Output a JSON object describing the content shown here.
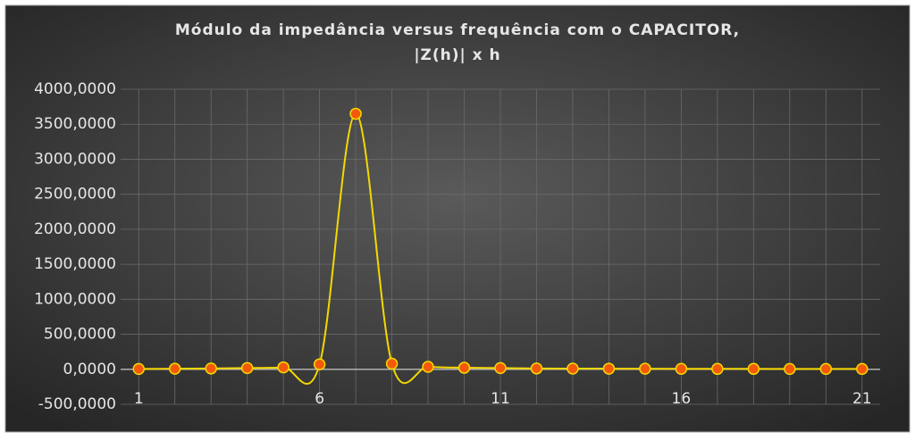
{
  "chart_data": {
    "type": "line",
    "title": "Módulo da impedância versus frequência com o CAPACITOR,",
    "subtitle": "|Z(h)|  x h",
    "x": [
      1,
      2,
      3,
      4,
      5,
      6,
      7,
      8,
      9,
      10,
      11,
      12,
      13,
      14,
      15,
      16,
      17,
      18,
      19,
      20,
      21
    ],
    "series": [
      {
        "name": "|Z(h)|",
        "color": "#f5d800",
        "marker_color": "#f25a0a",
        "values": [
          5,
          8,
          12,
          18,
          28,
          70,
          3650,
          80,
          35,
          22,
          18,
          12,
          10,
          9,
          8,
          7,
          6,
          6,
          5,
          5,
          5
        ]
      }
    ],
    "xlim": [
      0.5,
      21.5
    ],
    "xticks": [
      1,
      6,
      11,
      16,
      21
    ],
    "ylim": [
      -500,
      4000
    ],
    "yticks": [
      {
        "value": -500,
        "label": "-500,0000"
      },
      {
        "value": 0,
        "label": "0,0000"
      },
      {
        "value": 500,
        "label": "500,0000"
      },
      {
        "value": 1000,
        "label": "1000,0000"
      },
      {
        "value": 1500,
        "label": "1500,0000"
      },
      {
        "value": 2000,
        "label": "2000,0000"
      },
      {
        "value": 2500,
        "label": "2500,0000"
      },
      {
        "value": 3000,
        "label": "3000,0000"
      },
      {
        "value": 3500,
        "label": "3500,0000"
      },
      {
        "value": 4000,
        "label": "4000,0000"
      }
    ],
    "grid": true
  }
}
